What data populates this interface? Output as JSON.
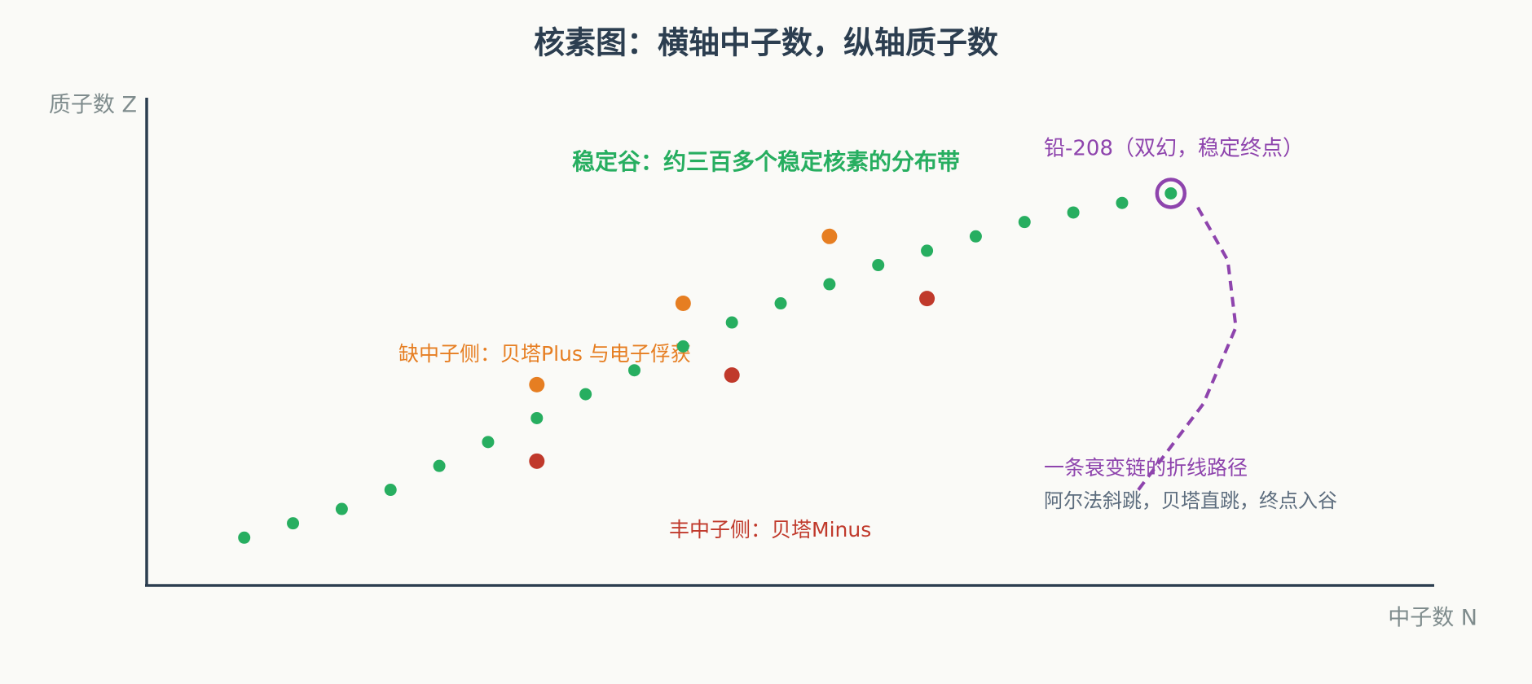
{
  "chart_data": {
    "type": "scatter",
    "title": "核素图：横轴中子数，纵轴质子数",
    "x_label": "中子数 N",
    "y_label": "质子数 Z",
    "xlim": [
      0,
      158
    ],
    "ylim": [
      0,
      102
    ],
    "series": [
      {
        "color": "#27ae60",
        "x": [
          12,
          18,
          24,
          30,
          36,
          42,
          48,
          54,
          60,
          66,
          72,
          78,
          84,
          90,
          96,
          102,
          108,
          114,
          120,
          126
        ],
        "y": [
          10,
          13,
          16,
          20,
          25,
          30,
          35,
          40,
          45,
          50,
          55,
          59,
          63,
          67,
          70,
          73,
          76,
          78,
          80,
          82
        ]
      },
      {
        "color": "#e67e22",
        "x": [
          48,
          66,
          84
        ],
        "y": [
          42,
          59,
          73
        ]
      },
      {
        "color": "#c0392b",
        "x": [
          48,
          72,
          96
        ],
        "y": [
          26,
          44,
          60
        ]
      }
    ],
    "decay_path": {
      "color": "#8e44ad",
      "x": [
        122,
        130,
        134,
        133,
        129
      ],
      "y": [
        20,
        38,
        54,
        68,
        80
      ]
    },
    "highlight": {
      "color": "#8e44ad",
      "x": 126,
      "y": 82
    },
    "annotations": {
      "valley": "稳定谷：约三百多个稳定核素的分布带",
      "lead": "铅-208（双幻，稳定终点）",
      "proton_rich": "缺中子侧：贝塔Plus 与电子俘获",
      "neutron_rich": "丰中子侧：贝塔Minus",
      "chain": "一条衰变链的折线路径",
      "chain_note": "阿尔法斜跳，贝塔直跳，终点入谷"
    }
  }
}
